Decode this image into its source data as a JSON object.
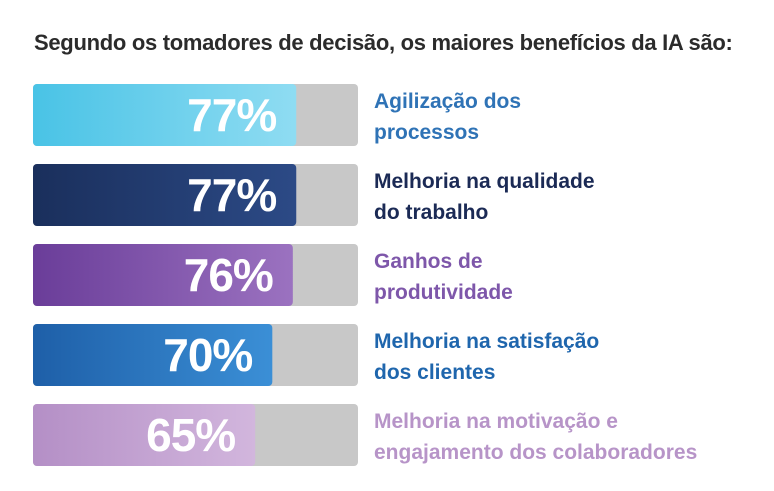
{
  "chart_data": {
    "type": "bar",
    "orientation": "horizontal",
    "title": "Segundo os tomadores de decisão, os maiores benefícios da IA são:",
    "xlim": [
      0,
      100
    ],
    "categories": [
      [
        "Agilização dos",
        "processos"
      ],
      [
        "Melhoria na qualidade",
        "do trabalho"
      ],
      [
        "Ganhos de",
        "produtividade"
      ],
      [
        "Melhoria na satisfação",
        "dos clientes"
      ],
      [
        "Melhoria na motivação e",
        "engajamento dos colaboradores"
      ]
    ],
    "values": [
      77,
      77,
      76,
      70,
      65
    ],
    "labels": [
      "77%",
      "77%",
      "76%",
      "70%",
      "65%"
    ],
    "colors": [
      {
        "fill_start": "#49c3e6",
        "fill_end": "#8fdcf2",
        "text": "#2f73b6"
      },
      {
        "fill_start": "#1a2f5c",
        "fill_end": "#2c4a86",
        "text": "#1b2a55"
      },
      {
        "fill_start": "#6a3d99",
        "fill_end": "#9b72c0",
        "text": "#7e57aa"
      },
      {
        "fill_start": "#1e5fa8",
        "fill_end": "#3b8fd6",
        "text": "#1f66ad"
      },
      {
        "fill_start": "#b48fc6",
        "fill_end": "#d2b6dd",
        "text": "#b794c8"
      }
    ],
    "track_color": "#c8c8c8"
  }
}
